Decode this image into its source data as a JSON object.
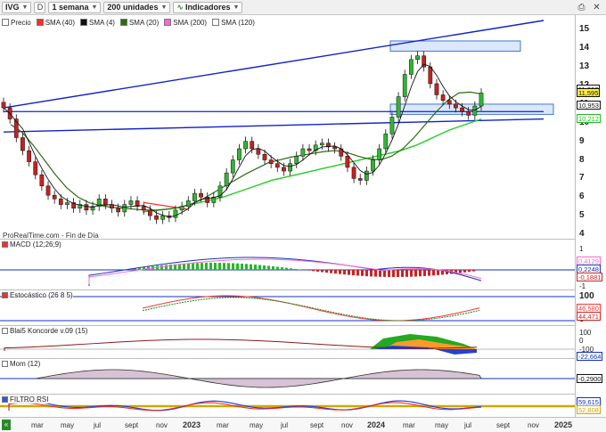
{
  "toolbar": {
    "symbol": "IVG",
    "d_label": "D",
    "timeframe": "1 semana",
    "units": "200 unidades",
    "indicators": "Indicadores"
  },
  "legend": [
    {
      "label": "Precio",
      "color": "#ffffff"
    },
    {
      "label": "SMA (40)",
      "color": "#ff2a2a"
    },
    {
      "label": "SMA (4)",
      "color": "#111111"
    },
    {
      "label": "SMA (20)",
      "color": "#2e6b12"
    },
    {
      "label": "SMA (200)",
      "color": "#ff66cc"
    },
    {
      "label": "SMA (120)",
      "color": "#ffffff"
    }
  ],
  "watermark": "ProRealTime.com - Fin de Día",
  "price_axis": {
    "ticks": [
      "15",
      "14",
      "13",
      "12",
      "11",
      "10",
      "9",
      "8",
      "7",
      "6",
      "5",
      "4"
    ],
    "tags": [
      {
        "text": "11,803",
        "color": "#111111"
      },
      {
        "text": "11,595",
        "color": "#111111",
        "bg": "#ffee33"
      },
      {
        "text": "10,953",
        "color": "#111111"
      },
      {
        "text": "10,212",
        "color": "#22bb22"
      }
    ]
  },
  "macd": {
    "label": "MACD (12;26;9)",
    "ticks": [
      "1",
      "0",
      "-1"
    ],
    "tags": [
      {
        "text": "0,4129",
        "color": "#ff66cc"
      },
      {
        "text": "0,2248",
        "color": "#1133bb"
      },
      {
        "text": "-0,1881",
        "color": "#cc2222"
      }
    ]
  },
  "stoch": {
    "label": "Estocástico (26 8 5)",
    "ticks": [
      "100",
      "0"
    ],
    "tags": [
      {
        "text": "46,580",
        "color": "#ff3333"
      },
      {
        "text": "44,471",
        "color": "#cc2222"
      }
    ]
  },
  "koncorde": {
    "label": "Blai5 Koncorde v.09 (15)",
    "ticks": [
      "100",
      "0",
      "-100",
      "-200"
    ],
    "tags": [
      {
        "text": "-22,664",
        "color": "#1133bb"
      }
    ]
  },
  "mom": {
    "label": "Mom (12)",
    "tags": [
      {
        "text": "-0,2900",
        "color": "#111111"
      }
    ]
  },
  "rsi": {
    "label": "FILTRO RSI",
    "tags": [
      {
        "text": "59,615",
        "color": "#1133bb"
      },
      {
        "text": "52,808",
        "color": "#ccaa00"
      }
    ]
  },
  "time_axis": {
    "labels": [
      {
        "text": "mar",
        "year": false
      },
      {
        "text": "may",
        "year": false
      },
      {
        "text": "jul",
        "year": false
      },
      {
        "text": "sept",
        "year": false
      },
      {
        "text": "nov",
        "year": false
      },
      {
        "text": "2023",
        "year": true
      },
      {
        "text": "mar",
        "year": false
      },
      {
        "text": "may",
        "year": false
      },
      {
        "text": "jul",
        "year": false
      },
      {
        "text": "sept",
        "year": false
      },
      {
        "text": "nov",
        "year": false
      },
      {
        "text": "2024",
        "year": true
      },
      {
        "text": "mar",
        "year": false
      },
      {
        "text": "may",
        "year": false
      },
      {
        "text": "jul",
        "year": false
      },
      {
        "text": "sept",
        "year": false
      },
      {
        "text": "nov",
        "year": false
      },
      {
        "text": "2025",
        "year": true
      }
    ]
  },
  "chart_data": {
    "type": "candlestick",
    "ylim": [
      4,
      15.5
    ],
    "price_closes": [
      10.8,
      10.2,
      9.2,
      8.5,
      7.9,
      7.2,
      6.6,
      6.1,
      5.9,
      5.6,
      5.7,
      5.4,
      5.6,
      5.3,
      5.5,
      5.9,
      5.6,
      5.4,
      5.2,
      5.6,
      5.8,
      5.5,
      5.3,
      5.0,
      4.8,
      5.0,
      4.9,
      5.3,
      5.5,
      5.8,
      6.2,
      6.0,
      5.7,
      6.0,
      6.6,
      7.3,
      8.0,
      8.6,
      9.0,
      8.6,
      8.3,
      8.0,
      7.8,
      7.6,
      7.4,
      7.8,
      8.2,
      8.6,
      8.5,
      8.8,
      8.9,
      8.7,
      8.6,
      8.2,
      7.6,
      7.0,
      6.9,
      7.4,
      8.0,
      8.6,
      9.4,
      10.3,
      11.4,
      12.6,
      13.4,
      13.6,
      13.0,
      12.1,
      11.5,
      11.2,
      11.0,
      10.8,
      10.6,
      10.4,
      10.9,
      11.6
    ],
    "sma20": [
      9.9,
      9.5,
      8.8,
      8.0,
      7.2,
      6.5,
      6.0,
      5.7,
      5.55,
      5.45,
      5.4,
      5.35,
      5.3,
      5.3,
      5.35,
      5.45,
      5.6,
      5.85,
      6.2,
      6.55,
      6.9,
      7.25,
      7.55,
      7.85,
      8.0,
      8.15,
      8.25,
      8.35,
      8.45,
      8.5,
      8.4,
      8.2,
      8.05,
      8.0,
      8.2,
      8.6,
      9.2,
      9.9,
      10.6,
      11.2,
      11.6,
      11.65,
      11.55
    ],
    "sma120": [
      5.2,
      5.3,
      5.4,
      5.6,
      5.8,
      6.0,
      6.3,
      6.6,
      6.9,
      7.1,
      7.3,
      7.5,
      7.7,
      7.9,
      8.1,
      8.3,
      8.5,
      8.8,
      9.2,
      9.6,
      9.9,
      10.2
    ],
    "channel": {
      "upper": [
        [
          2022.05,
          10.8
        ],
        [
          2024.9,
          15.5
        ]
      ],
      "lower": [
        [
          2022.05,
          9.5
        ],
        [
          2024.9,
          10.2
        ]
      ],
      "mid": [
        [
          2022.05,
          10.6
        ],
        [
          2024.9,
          10.6
        ]
      ]
    }
  }
}
